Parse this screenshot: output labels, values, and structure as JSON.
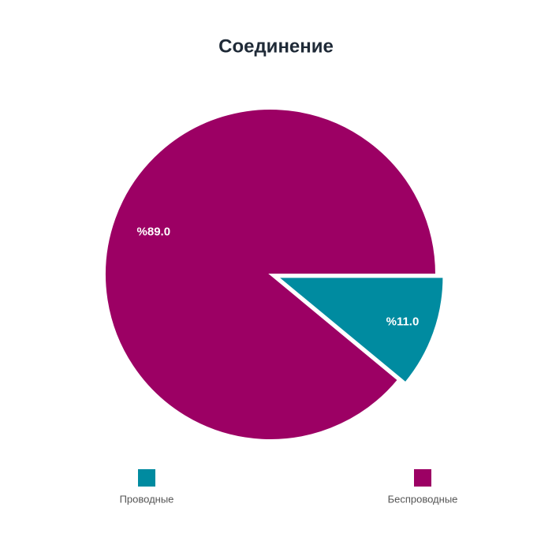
{
  "chart_data": {
    "type": "pie",
    "title": "Соединение",
    "categories": [
      "Проводные",
      "Беспроводные"
    ],
    "values": [
      11.0,
      89.0
    ],
    "value_labels": [
      "%11.0",
      "%89.0"
    ],
    "colors": [
      "#008ba0",
      "#9c0064"
    ],
    "exploded": [
      true,
      false
    ]
  }
}
